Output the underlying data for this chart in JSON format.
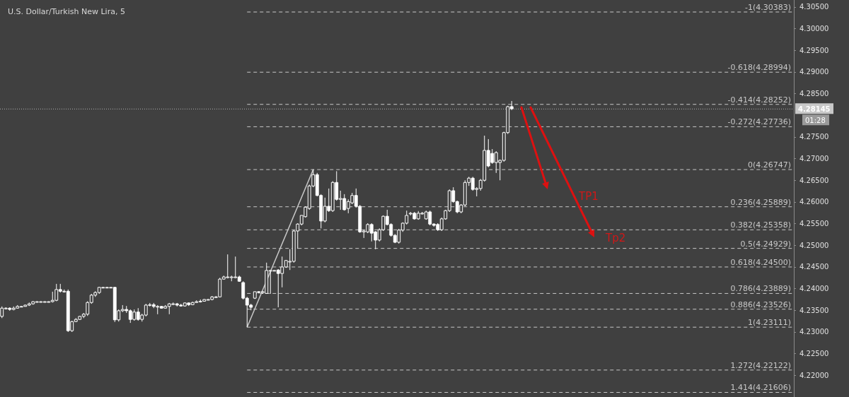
{
  "chart_data": {
    "type": "candlestick",
    "title": "U.S. Dollar/Turkish New Lira, 5",
    "categories": [
      null,
      null,
      null,
      null,
      null,
      null,
      null,
      null,
      null,
      null,
      null,
      null,
      null,
      null,
      null,
      null,
      null,
      null,
      null,
      null,
      null,
      null,
      null,
      null,
      null,
      null,
      null,
      null,
      null,
      null,
      null,
      null,
      null,
      null,
      null,
      null,
      null,
      null,
      null,
      null,
      null,
      null,
      null,
      null,
      null,
      null,
      null,
      null,
      null,
      null,
      null,
      null,
      null,
      null,
      null,
      null,
      null,
      null,
      null,
      null,
      null,
      null,
      null,
      null,
      null,
      null,
      null,
      null,
      null,
      null,
      null,
      null,
      null,
      null,
      null,
      null,
      null,
      null,
      null,
      null,
      null,
      null,
      null,
      null,
      null,
      null,
      null,
      null,
      null,
      null,
      null,
      null,
      null,
      null,
      null,
      null,
      null,
      null,
      null,
      null,
      null,
      null,
      null,
      null,
      null,
      null,
      null,
      null,
      null,
      null,
      null,
      null,
      null,
      null,
      null,
      null,
      null,
      null,
      null,
      null,
      null,
      null,
      null,
      null,
      null,
      null,
      null,
      null,
      null,
      null,
      null,
      null,
      null,
      null,
      null,
      null,
      null,
      null,
      null,
      null,
      null,
      null,
      null,
      null,
      null,
      null,
      null,
      null,
      null,
      null,
      null,
      null,
      null,
      null,
      null,
      null,
      null,
      null,
      null,
      null,
      null,
      null,
      null,
      null,
      null,
      null,
      null,
      null,
      null,
      null,
      null,
      null,
      null,
      null,
      null,
      null,
      null,
      null,
      null,
      null,
      null,
      null,
      null,
      null,
      null,
      null,
      null,
      null,
      null,
      null,
      null,
      null,
      null,
      null,
      null,
      null,
      null,
      null,
      null,
      null,
      null,
      null,
      null,
      null
    ],
    "color": "#ffffff",
    "ohlc": [
      [
        4.2336,
        4.2359,
        4.2332,
        4.2355
      ],
      [
        4.2354,
        4.2357,
        4.2352,
        4.2355
      ],
      [
        4.2355,
        4.2357,
        4.2349,
        4.2352
      ],
      [
        4.2352,
        4.2359,
        4.235,
        4.2355
      ],
      [
        4.2355,
        4.2362,
        4.2354,
        4.2359
      ],
      [
        4.2359,
        4.236,
        4.2357,
        4.2359
      ],
      [
        4.2359,
        4.2363,
        4.2359,
        4.2362
      ],
      [
        4.2362,
        4.2368,
        4.236,
        4.2365
      ],
      [
        4.2365,
        4.2371,
        4.2363,
        4.237
      ],
      [
        4.237,
        4.2371,
        4.2368,
        4.237
      ],
      [
        4.237,
        4.2371,
        4.2368,
        4.237
      ],
      [
        4.237,
        4.2371,
        4.2368,
        4.237
      ],
      [
        4.237,
        4.2371,
        4.2368,
        4.237
      ],
      [
        4.237,
        4.2393,
        4.2368,
        4.2373
      ],
      [
        4.2373,
        4.2411,
        4.2371,
        4.2398
      ],
      [
        4.2398,
        4.2411,
        4.2391,
        4.2394
      ],
      [
        4.2394,
        4.2398,
        4.2391,
        4.2394
      ],
      [
        4.2394,
        4.2398,
        4.23,
        4.2303
      ],
      [
        4.2303,
        4.2326,
        4.23,
        4.2324
      ],
      [
        4.2324,
        4.2332,
        4.2323,
        4.2329
      ],
      [
        4.2329,
        4.2337,
        4.2328,
        4.2336
      ],
      [
        4.2336,
        4.2344,
        4.2332,
        4.2341
      ],
      [
        4.2341,
        4.2371,
        4.2337,
        4.2368
      ],
      [
        4.2368,
        4.2388,
        4.2365,
        4.2385
      ],
      [
        4.2385,
        4.2394,
        4.2381,
        4.2391
      ],
      [
        4.2391,
        4.2404,
        4.2388,
        4.2403
      ],
      [
        4.2403,
        4.2404,
        4.2401,
        4.2403
      ],
      [
        4.2403,
        4.2404,
        4.2401,
        4.2403
      ],
      [
        4.2403,
        4.2404,
        4.2401,
        4.2403
      ],
      [
        4.2403,
        4.2404,
        4.2323,
        4.2328
      ],
      [
        4.2328,
        4.2352,
        4.2324,
        4.2349
      ],
      [
        4.2349,
        4.2362,
        4.2346,
        4.2352
      ],
      [
        4.2352,
        4.236,
        4.2344,
        4.2349
      ],
      [
        4.2349,
        4.2352,
        4.2321,
        4.2329
      ],
      [
        4.2329,
        4.2352,
        4.2326,
        4.2346
      ],
      [
        4.2346,
        4.2355,
        4.2326,
        4.2329
      ],
      [
        4.2329,
        4.2342,
        4.2324,
        4.2339
      ],
      [
        4.2339,
        4.2365,
        4.2336,
        4.2362
      ],
      [
        4.2362,
        4.2367,
        4.2359,
        4.2363
      ],
      [
        4.2363,
        4.2367,
        4.2355,
        4.2359
      ],
      [
        4.2359,
        4.2362,
        4.2341,
        4.2359
      ],
      [
        4.2359,
        4.236,
        4.2354,
        4.2355
      ],
      [
        4.2355,
        4.2362,
        4.2354,
        4.2359
      ],
      [
        4.2359,
        4.2367,
        4.2341,
        4.2365
      ],
      [
        4.2365,
        4.2368,
        4.2362,
        4.2365
      ],
      [
        4.2365,
        4.2367,
        4.2359,
        4.2362
      ],
      [
        4.2362,
        4.2365,
        4.2359,
        4.236
      ],
      [
        4.236,
        4.2368,
        4.2359,
        4.2367
      ],
      [
        4.2367,
        4.2368,
        4.236,
        4.2363
      ],
      [
        4.2363,
        4.237,
        4.2362,
        4.2368
      ],
      [
        4.2368,
        4.2373,
        4.2367,
        4.237
      ],
      [
        4.237,
        4.2375,
        4.2368,
        4.2371
      ],
      [
        4.2371,
        4.2376,
        4.237,
        4.2375
      ],
      [
        4.2375,
        4.2376,
        4.2373,
        4.2375
      ],
      [
        4.2375,
        4.2383,
        4.2373,
        4.2381
      ],
      [
        4.2381,
        4.2383,
        4.238,
        4.2381
      ],
      [
        4.2381,
        4.2425,
        4.238,
        4.2422
      ],
      [
        4.2422,
        4.243,
        4.2421,
        4.2427
      ],
      [
        4.2427,
        4.2479,
        4.2424,
        4.2427
      ],
      [
        4.2427,
        4.243,
        4.2417,
        4.2427
      ],
      [
        4.2427,
        4.2474,
        4.2424,
        4.2427
      ],
      [
        4.2427,
        4.243,
        4.2416,
        4.2417
      ],
      [
        4.2414,
        4.2417,
        4.2375,
        4.2378
      ],
      [
        4.2378,
        4.2381,
        4.2311,
        4.2362
      ],
      [
        4.2362,
        4.2365,
        4.235,
        4.2357
      ],
      [
        4.2378,
        4.2393,
        4.2376,
        4.2393
      ],
      [
        4.2393,
        4.2394,
        4.2389,
        4.2391
      ],
      [
        4.2391,
        4.2394,
        4.2388,
        4.2393
      ],
      [
        4.2389,
        4.246,
        4.2388,
        4.2442
      ],
      [
        4.2442,
        4.2443,
        4.2388,
        4.2442
      ],
      [
        4.2442,
        4.2443,
        4.244,
        4.2442
      ],
      [
        4.2443,
        4.2445,
        4.2357,
        4.2435
      ],
      [
        4.2435,
        4.2474,
        4.2403,
        4.245
      ],
      [
        4.245,
        4.2466,
        4.2448,
        4.2465
      ],
      [
        4.2463,
        4.2491,
        4.2443,
        4.2463
      ],
      [
        4.2463,
        4.2535,
        4.246,
        4.2533
      ],
      [
        4.2533,
        4.2551,
        4.2492,
        4.2549
      ],
      [
        4.2549,
        4.2569,
        4.2546,
        4.2569
      ],
      [
        4.2566,
        4.259,
        4.2564,
        4.2588
      ],
      [
        4.2585,
        4.264,
        4.2582,
        4.2637
      ],
      [
        4.2637,
        4.2675,
        4.2634,
        4.2663
      ],
      [
        4.2663,
        4.2667,
        4.2613,
        4.2615
      ],
      [
        4.2615,
        4.2618,
        4.2539,
        4.2556
      ],
      [
        4.2556,
        4.261,
        4.2553,
        4.259
      ],
      [
        4.259,
        4.2631,
        4.2577,
        4.258
      ],
      [
        4.258,
        4.2648,
        4.2577,
        4.2645
      ],
      [
        4.2645,
        4.2671,
        4.2603,
        4.2606
      ],
      [
        4.2606,
        4.2626,
        4.2582,
        4.2608
      ],
      [
        4.2608,
        4.2618,
        4.258,
        4.2582
      ],
      [
        4.2585,
        4.2606,
        4.2574,
        4.2601
      ],
      [
        4.2598,
        4.2621,
        4.2595,
        4.2615
      ],
      [
        4.2615,
        4.2631,
        4.2587,
        4.259
      ],
      [
        4.259,
        4.2593,
        4.2529,
        4.2531
      ],
      [
        4.2531,
        4.2536,
        4.2517,
        4.2533
      ],
      [
        4.2531,
        4.2551,
        4.2528,
        4.2548
      ],
      [
        4.2548,
        4.2551,
        4.2509,
        4.2528
      ],
      [
        4.2531,
        4.2533,
        4.2491,
        4.2512
      ],
      [
        4.2512,
        4.2539,
        4.2509,
        4.2536
      ],
      [
        4.2536,
        4.2569,
        4.2533,
        4.2567
      ],
      [
        4.2567,
        4.2582,
        4.2546,
        4.2548
      ],
      [
        4.2548,
        4.2551,
        4.252,
        4.2523
      ],
      [
        4.2523,
        4.2526,
        4.2505,
        4.2507
      ],
      [
        4.2507,
        4.2538,
        4.2504,
        4.2535
      ],
      [
        4.2535,
        4.2553,
        4.2531,
        4.2551
      ],
      [
        4.2551,
        4.258,
        4.2548,
        4.2569
      ],
      [
        4.2574,
        4.2577,
        4.2569,
        4.2574
      ],
      [
        4.2574,
        4.2577,
        4.2559,
        4.2561
      ],
      [
        4.2561,
        4.2579,
        4.2559,
        4.2574
      ],
      [
        4.2574,
        4.2577,
        4.2571,
        4.2574
      ],
      [
        4.2561,
        4.258,
        4.2559,
        4.2577
      ],
      [
        4.2577,
        4.258,
        4.2546,
        4.2549
      ],
      [
        4.2549,
        4.2551,
        4.2543,
        4.2546
      ],
      [
        4.2548,
        4.2551,
        4.2533,
        4.2536
      ],
      [
        4.2536,
        4.2564,
        4.2533,
        4.2561
      ],
      [
        4.2561,
        4.2582,
        4.2559,
        4.258
      ],
      [
        4.258,
        4.2629,
        4.2577,
        4.2626
      ],
      [
        4.2626,
        4.2634,
        4.2598,
        4.2601
      ],
      [
        4.2601,
        4.2603,
        4.2574,
        4.2577
      ],
      [
        4.2577,
        4.2595,
        4.2574,
        4.2593
      ],
      [
        4.2593,
        4.265,
        4.259,
        4.2645
      ],
      [
        4.2645,
        4.2658,
        4.2637,
        4.2655
      ],
      [
        4.2655,
        4.2658,
        4.2626,
        4.2629
      ],
      [
        4.2629,
        4.2634,
        4.2613,
        4.2631
      ],
      [
        4.2631,
        4.2653,
        4.2626,
        4.265
      ],
      [
        4.265,
        4.2753,
        4.2647,
        4.2719
      ],
      [
        4.2719,
        4.2745,
        4.268,
        4.2683
      ],
      [
        4.2712,
        4.2722,
        4.2688,
        4.2691
      ],
      [
        4.2691,
        4.2717,
        4.2667,
        4.2714
      ],
      [
        4.2691,
        4.2698,
        4.265,
        4.2696
      ],
      [
        4.2696,
        4.2762,
        4.2693,
        4.276
      ],
      [
        4.276,
        4.2822,
        4.2757,
        4.282
      ],
      [
        4.282,
        4.2833,
        4.2812,
        4.2815
      ],
      null,
      null,
      null,
      null,
      null,
      null,
      null,
      null,
      null,
      null,
      null,
      null,
      null,
      null,
      null,
      null,
      null,
      null,
      null,
      null,
      null,
      null,
      null,
      null,
      null,
      null,
      null,
      null,
      null,
      null,
      null,
      null,
      null,
      null,
      null,
      null,
      null,
      null,
      null,
      null,
      null,
      null,
      null,
      null,
      null,
      null,
      null,
      null,
      null,
      null,
      null,
      null,
      null,
      null,
      null,
      null,
      null,
      null,
      null,
      null,
      null,
      null,
      null,
      null,
      null,
      null,
      null,
      null,
      null,
      null,
      null,
      null
    ],
    "series": [
      {
        "type": "line",
        "color": "#c8c8c8",
        "values": [
          null,
          null,
          null,
          null,
          null,
          null,
          null,
          null,
          null,
          null,
          null,
          null,
          null,
          null,
          null,
          null,
          null,
          null,
          null,
          null,
          null,
          null,
          null,
          null,
          null,
          null,
          null,
          null,
          null,
          null,
          null,
          null,
          null,
          null,
          null,
          null,
          null,
          null,
          null,
          null,
          null,
          null,
          null,
          null,
          null,
          null,
          null,
          null,
          null,
          null,
          null,
          null,
          null,
          null,
          null,
          null,
          null,
          null,
          null,
          null,
          null,
          null,
          null,
          4.2311,
          null,
          null,
          null,
          null,
          null,
          null,
          null,
          null,
          null,
          null,
          null,
          null,
          null,
          null,
          null,
          null,
          4.2675,
          null,
          null,
          null,
          null,
          null,
          null,
          null,
          null,
          null,
          null,
          null,
          null,
          null,
          null,
          null,
          null,
          null,
          null,
          null,
          null,
          null,
          null,
          null,
          null,
          null,
          null,
          null,
          null,
          null,
          null,
          null,
          null,
          null,
          null,
          null,
          null,
          null,
          null,
          null,
          null,
          null,
          null,
          null,
          null,
          null,
          null,
          null,
          null,
          null,
          null,
          null,
          null,
          null,
          null,
          null,
          null,
          null,
          null,
          null,
          null,
          null,
          null,
          null,
          null,
          null,
          null,
          null,
          null,
          null,
          null,
          null,
          null,
          null,
          null,
          null,
          null,
          null,
          null,
          null,
          null,
          null,
          null,
          null,
          null,
          null,
          null,
          null,
          null,
          null,
          null,
          null,
          null,
          null,
          null,
          null,
          null,
          null,
          null,
          null,
          null,
          null,
          null,
          null,
          null,
          null,
          null,
          null,
          null,
          null,
          null,
          null,
          null,
          null,
          null,
          null,
          null,
          null,
          null,
          null,
          null,
          null,
          null,
          null
        ]
      }
    ],
    "ylim": [
      4.215,
      4.3066
    ],
    "yticks": [
      {
        "value": 4.22,
        "label": "4.22000"
      },
      {
        "value": 4.225,
        "label": "4.22500"
      },
      {
        "value": 4.23,
        "label": "4.23000"
      },
      {
        "value": 4.235,
        "label": "4.23500"
      },
      {
        "value": 4.24,
        "label": "4.24000"
      },
      {
        "value": 4.245,
        "label": "4.24500"
      },
      {
        "value": 4.25,
        "label": "4.25000"
      },
      {
        "value": 4.255,
        "label": "4.25500"
      },
      {
        "value": 4.26,
        "label": "4.26000"
      },
      {
        "value": 4.265,
        "label": "4.26500"
      },
      {
        "value": 4.27,
        "label": "4.27000"
      },
      {
        "value": 4.275,
        "label": "4.27500"
      },
      {
        "value": 4.285,
        "label": "4.28500"
      },
      {
        "value": 4.29,
        "label": "4.29000"
      },
      {
        "value": 4.295,
        "label": "4.29500"
      },
      {
        "value": 4.3,
        "label": "4.30000"
      },
      {
        "value": 4.305,
        "label": "4.30500"
      }
    ],
    "tick_labels": "y",
    "grid": false,
    "ref_lines": [
      {
        "axis": "y",
        "value": 4.30383,
        "label": "-1(4.30383)",
        "color": "#c8c8c8",
        "line_style": "dashed"
      },
      {
        "axis": "y",
        "value": 4.28994,
        "label": "-0.618(4.28994)",
        "color": "#c8c8c8",
        "line_style": "dashed"
      },
      {
        "axis": "y",
        "value": 4.28252,
        "label": "-0.414(4.28252)",
        "color": "#c8c8c8",
        "line_style": "dashed"
      },
      {
        "axis": "y",
        "value": 4.27736,
        "label": "-0.272(4.27736)",
        "color": "#c8c8c8",
        "line_style": "dashed"
      },
      {
        "axis": "y",
        "value": 4.26747,
        "label": "0(4.26747)",
        "color": "#c8c8c8",
        "line_style": "dashed"
      },
      {
        "axis": "y",
        "value": 4.25889,
        "label": "0.236(4.25889)",
        "color": "#c8c8c8",
        "line_style": "dashed"
      },
      {
        "axis": "y",
        "value": 4.25358,
        "label": "0.382(4.25358)",
        "color": "#c8c8c8",
        "line_style": "dashed"
      },
      {
        "axis": "y",
        "value": 4.24929,
        "label": "0.5(4.24929)",
        "color": "#c8c8c8",
        "line_style": "dashed"
      },
      {
        "axis": "y",
        "value": 4.245,
        "label": "0.618(4.24500)",
        "color": "#c8c8c8",
        "line_style": "dashed"
      },
      {
        "axis": "y",
        "value": 4.23889,
        "label": "0.786(4.23889)",
        "color": "#c8c8c8",
        "line_style": "dashed"
      },
      {
        "axis": "y",
        "value": 4.23526,
        "label": "0.886(4.23526)",
        "color": "#c8c8c8",
        "line_style": "dashed"
      },
      {
        "axis": "y",
        "value": 4.23111,
        "label": "1(4.23111)",
        "color": "#c8c8c8",
        "line_style": "dashed"
      },
      {
        "axis": "y",
        "value": 4.22122,
        "label": "1.272(4.22122)",
        "color": "#c8c8c8",
        "line_style": "dashed"
      },
      {
        "axis": "y",
        "value": 4.21606,
        "label": "1.414(4.21606)",
        "color": "#c8c8c8",
        "line_style": "dashed"
      },
      {
        "axis": "y",
        "value": 4.28145,
        "label": "4.28145",
        "color": "#b0b0b0",
        "line_style": "dotted"
      }
    ],
    "annotations": [
      "TP1",
      "Tp2",
      "01:28"
    ]
  }
}
